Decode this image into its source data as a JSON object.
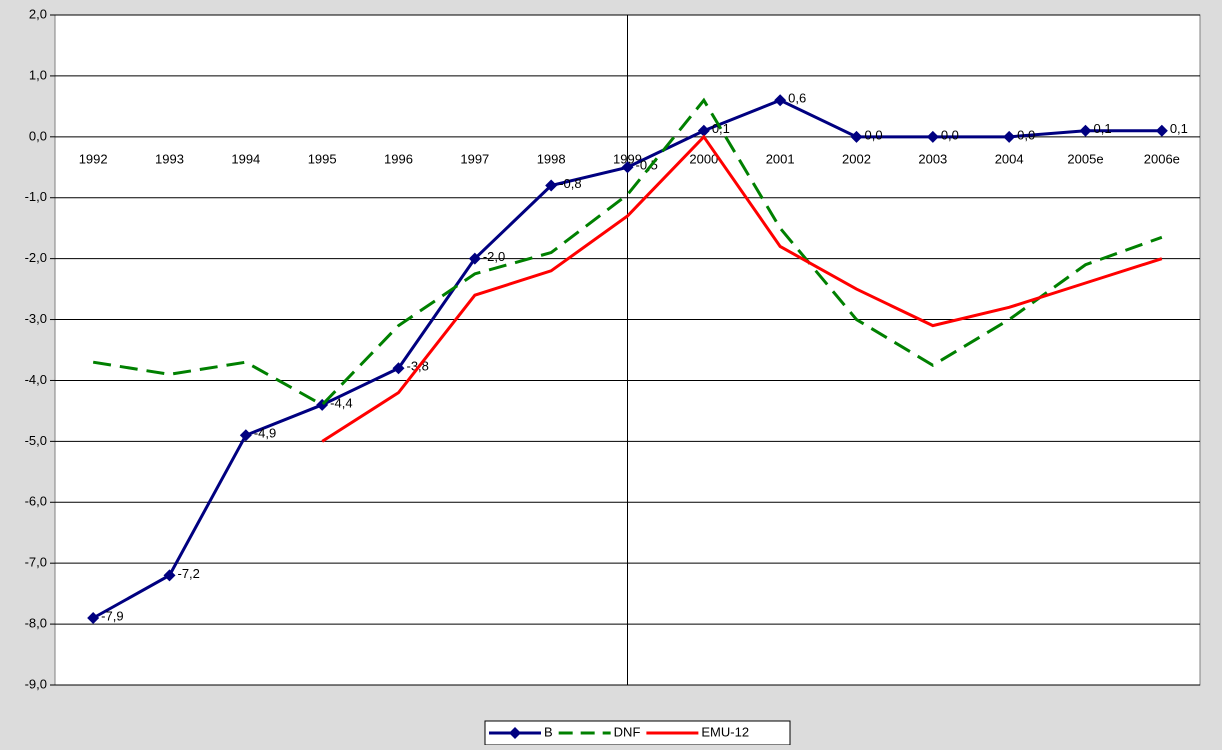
{
  "chart_data": {
    "type": "line",
    "categories": [
      "1992",
      "1993",
      "1994",
      "1995",
      "1996",
      "1997",
      "1998",
      "1999",
      "2000",
      "2001",
      "2002",
      "2003",
      "2004",
      "2005e",
      "2006e"
    ],
    "series": [
      {
        "name": "B",
        "color": "#000080",
        "marker": "diamond",
        "dash": "solid",
        "values": [
          -7.9,
          -7.2,
          -4.9,
          -4.4,
          -3.8,
          -2.0,
          -0.8,
          -0.5,
          0.1,
          0.6,
          0.0,
          0.0,
          0.0,
          0.1,
          0.1
        ],
        "value_labels": [
          "-7,9",
          "-7,2",
          "-4,9",
          "-4,4",
          "-3,8",
          "-2,0",
          "-0,8",
          "-0,5",
          "0,1",
          "0,6",
          "0,0",
          "0,0",
          "0,0",
          "0,1",
          "0,1"
        ]
      },
      {
        "name": "DNF",
        "color": "#008000",
        "dash": "dashed",
        "values": [
          -3.7,
          -3.9,
          -3.7,
          -4.4,
          -3.1,
          -2.25,
          -1.9,
          -0.95,
          0.6,
          -1.5,
          -3.0,
          -3.75,
          -3.0,
          -2.1,
          -1.65
        ]
      },
      {
        "name": "EMU-12",
        "color": "#ff0000",
        "dash": "solid",
        "values": [
          null,
          null,
          null,
          -5.0,
          -4.2,
          -2.6,
          -2.2,
          -1.3,
          0.0,
          -1.8,
          -2.5,
          -3.1,
          -2.8,
          -2.4,
          -2.0
        ]
      }
    ],
    "ylim": [
      -9,
      2
    ],
    "yticks": [
      {
        "value": 2,
        "label": "2,0"
      },
      {
        "value": 1,
        "label": "1,0"
      },
      {
        "value": 0,
        "label": "0,0"
      },
      {
        "value": -1,
        "label": "-1,0"
      },
      {
        "value": -2,
        "label": "-2,0"
      },
      {
        "value": -3,
        "label": "-3,0"
      },
      {
        "value": -4,
        "label": "-4,0"
      },
      {
        "value": -5,
        "label": "-5,0"
      },
      {
        "value": -6,
        "label": "-6,0"
      },
      {
        "value": -7,
        "label": "-7,0"
      },
      {
        "value": -8,
        "label": "-8,0"
      },
      {
        "value": -9,
        "label": "-9,0"
      }
    ],
    "grid": true,
    "legend": "bottom"
  }
}
